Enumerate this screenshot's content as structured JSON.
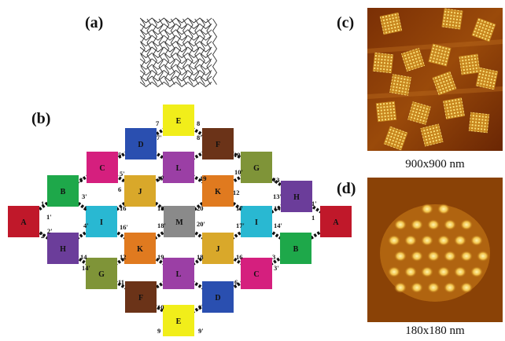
{
  "panels": {
    "a": "(a)",
    "b": "(b)",
    "c": "(c)",
    "d": "(d)"
  },
  "captions": {
    "c": "900x900 nm",
    "d": "180x180 nm"
  },
  "colors": {
    "A": "#c0182a",
    "B": "#1ea84a",
    "C": "#d51f7e",
    "D": "#2a4fb0",
    "E": "#f1ee1a",
    "F": "#6b3318",
    "G": "#7f9438",
    "H": "#6b3d9a",
    "I": "#29b8d2",
    "J": "#d9a82a",
    "K": "#e07a1f",
    "L": "#9b3fa5",
    "M": "#8a8a8a"
  },
  "tiles": [
    {
      "id": "E-top",
      "letter": "E"
    },
    {
      "id": "D-top",
      "letter": "D"
    },
    {
      "id": "F-top",
      "letter": "F"
    },
    {
      "id": "C-top",
      "letter": "C"
    },
    {
      "id": "L-top",
      "letter": "L"
    },
    {
      "id": "G-top",
      "letter": "G"
    },
    {
      "id": "B-left",
      "letter": "B"
    },
    {
      "id": "J-top",
      "letter": "J"
    },
    {
      "id": "K-top",
      "letter": "K"
    },
    {
      "id": "H-right",
      "letter": "H"
    },
    {
      "id": "A-left",
      "letter": "A"
    },
    {
      "id": "I-left",
      "letter": "I"
    },
    {
      "id": "M-center",
      "letter": "M"
    },
    {
      "id": "I-right",
      "letter": "I"
    },
    {
      "id": "A-right",
      "letter": "A"
    },
    {
      "id": "H-left",
      "letter": "H"
    },
    {
      "id": "K-bottom",
      "letter": "K"
    },
    {
      "id": "J-bottom",
      "letter": "J"
    },
    {
      "id": "B-right",
      "letter": "B"
    },
    {
      "id": "G-bottom",
      "letter": "G"
    },
    {
      "id": "L-bottom",
      "letter": "L"
    },
    {
      "id": "C-bottom",
      "letter": "C"
    },
    {
      "id": "F-bottom",
      "letter": "F"
    },
    {
      "id": "D-bottom",
      "letter": "D"
    },
    {
      "id": "E-bottom",
      "letter": "E"
    }
  ],
  "sticky_end_labels": [
    "1",
    "1'",
    "2",
    "2'",
    "3",
    "3'",
    "4",
    "4'",
    "5",
    "5'",
    "6",
    "6'",
    "7",
    "7'",
    "8",
    "8'",
    "9",
    "9'",
    "10",
    "10'",
    "11",
    "11'",
    "12",
    "12'",
    "13",
    "13'",
    "14",
    "14'",
    "15",
    "15'",
    "16",
    "16'",
    "17",
    "17'",
    "18",
    "18'",
    "19",
    "19'",
    "20",
    "20'"
  ]
}
